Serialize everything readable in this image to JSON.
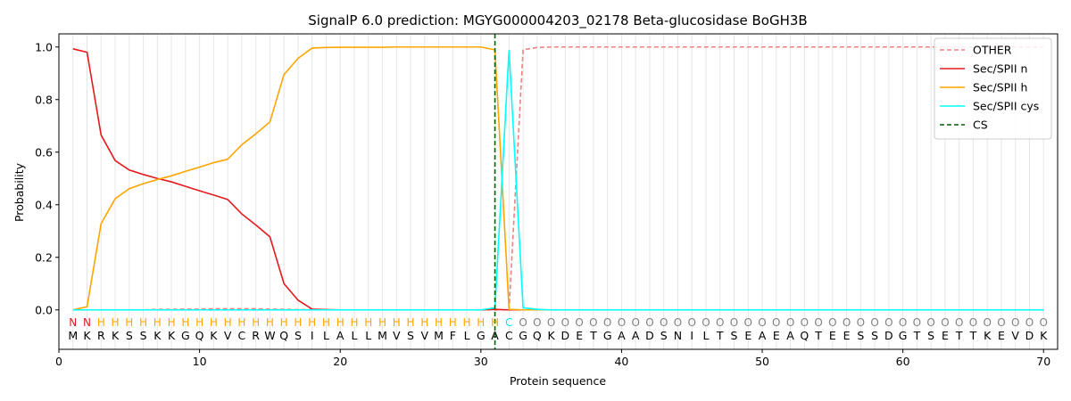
{
  "chart_data": {
    "type": "line",
    "title": "SignalP 6.0 prediction: MGYG000004203_02178 Beta-glucosidase BoGH3B",
    "xlabel": "Protein sequence",
    "ylabel": "Probability",
    "xlim": [
      0,
      71
    ],
    "ylim": [
      -0.15,
      1.05
    ],
    "x_ticks": [
      0,
      10,
      20,
      30,
      40,
      50,
      60,
      70
    ],
    "y_ticks": [
      0.0,
      0.2,
      0.4,
      0.6,
      0.8,
      1.0
    ],
    "x_tick_labels": [
      "0",
      "10",
      "20",
      "30",
      "40",
      "50",
      "60",
      "70"
    ],
    "y_tick_labels": [
      "0.0",
      "0.2",
      "0.4",
      "0.6",
      "0.8",
      "1.0"
    ],
    "grid": "vertical lines at each residue",
    "legend_position": "top-right",
    "sequence": [
      "M",
      "K",
      "R",
      "K",
      "S",
      "S",
      "K",
      "K",
      "G",
      "Q",
      "K",
      "V",
      "C",
      "R",
      "W",
      "Q",
      "S",
      "I",
      "L",
      "A",
      "L",
      "L",
      "M",
      "V",
      "S",
      "V",
      "M",
      "F",
      "L",
      "G",
      "A",
      "C",
      "G",
      "Q",
      "K",
      "D",
      "E",
      "T",
      "G",
      "A",
      "A",
      "D",
      "S",
      "N",
      "I",
      "L",
      "T",
      "S",
      "E",
      "A",
      "E",
      "A",
      "Q",
      "T",
      "E",
      "E",
      "S",
      "S",
      "D",
      "G",
      "T",
      "S",
      "E",
      "T",
      "T",
      "K",
      "E",
      "V",
      "D",
      "K"
    ],
    "prediction": [
      "N",
      "N",
      "H",
      "H",
      "H",
      "H",
      "H",
      "H",
      "H",
      "H",
      "H",
      "H",
      "H",
      "H",
      "H",
      "H",
      "H",
      "H",
      "H",
      "H",
      "H",
      "H",
      "H",
      "H",
      "H",
      "H",
      "H",
      "H",
      "H",
      "H",
      "H",
      "C",
      "O",
      "O",
      "O",
      "O",
      "O",
      "O",
      "O",
      "O",
      "O",
      "O",
      "O",
      "O",
      "O",
      "O",
      "O",
      "O",
      "O",
      "O",
      "O",
      "O",
      "O",
      "O",
      "O",
      "O",
      "O",
      "O",
      "O",
      "O",
      "O",
      "O",
      "O",
      "O",
      "O",
      "O",
      "O",
      "O",
      "O",
      "O"
    ],
    "prediction_colors": {
      "N": "#e41a1c",
      "H": "#ffa500",
      "C": "#00e5ee",
      "O": "#808080"
    },
    "cleavage_site": 31,
    "series": [
      {
        "name": "OTHER",
        "color": "#f08080",
        "style": "dashed",
        "values": [
          0.0,
          0.0,
          0.0,
          0.0,
          0.0,
          0.0,
          0.002,
          0.002,
          0.003,
          0.003,
          0.004,
          0.004,
          0.004,
          0.004,
          0.003,
          0.002,
          0.001,
          0.001,
          0.0,
          0.0,
          0.0,
          0.0,
          0.0,
          0.0,
          0.0,
          0.0,
          0.0,
          0.0,
          0.0,
          0.0,
          0.0,
          0.0,
          0.99,
          0.998,
          1.0,
          1.0,
          1.0,
          1.0,
          1.0,
          1.0,
          1.0,
          1.0,
          1.0,
          1.0,
          1.0,
          1.0,
          1.0,
          1.0,
          1.0,
          1.0,
          1.0,
          1.0,
          1.0,
          1.0,
          1.0,
          1.0,
          1.0,
          1.0,
          1.0,
          1.0,
          1.0,
          1.0,
          1.0,
          1.0,
          1.0,
          1.0,
          1.0,
          1.0,
          1.0,
          1.0
        ]
      },
      {
        "name": "Sec/SPII n",
        "color": "#e41a1c",
        "style": "solid",
        "values": [
          0.993,
          0.98,
          0.665,
          0.568,
          0.532,
          0.515,
          0.5,
          0.487,
          0.47,
          0.453,
          0.437,
          0.42,
          0.365,
          0.323,
          0.278,
          0.1,
          0.037,
          0.003,
          0.001,
          0.0,
          0.0,
          0.0,
          0.0,
          0.0,
          0.0,
          0.0,
          0.0,
          0.0,
          0.0,
          0.0,
          0.002,
          0.0,
          0.0,
          0.0,
          0.0,
          0.0,
          0.0,
          0.0,
          0.0,
          0.0,
          0.0,
          0.0,
          0.0,
          0.0,
          0.0,
          0.0,
          0.0,
          0.0,
          0.0,
          0.0,
          0.0,
          0.0,
          0.0,
          0.0,
          0.0,
          0.0,
          0.0,
          0.0,
          0.0,
          0.0,
          0.0,
          0.0,
          0.0,
          0.0,
          0.0,
          0.0,
          0.0,
          0.0,
          0.0,
          0.0
        ]
      },
      {
        "name": "Sec/SPII h",
        "color": "#ffa500",
        "style": "solid",
        "values": [
          0.0,
          0.012,
          0.328,
          0.423,
          0.461,
          0.48,
          0.496,
          0.51,
          0.527,
          0.543,
          0.56,
          0.573,
          0.628,
          0.67,
          0.715,
          0.895,
          0.957,
          0.996,
          0.998,
          0.999,
          0.999,
          0.999,
          0.999,
          1.0,
          1.0,
          1.0,
          1.0,
          1.0,
          1.0,
          1.0,
          0.989,
          0.002,
          0.0,
          0.0,
          0.0,
          0.0,
          0.0,
          0.0,
          0.0,
          0.0,
          0.0,
          0.0,
          0.0,
          0.0,
          0.0,
          0.0,
          0.0,
          0.0,
          0.0,
          0.0,
          0.0,
          0.0,
          0.0,
          0.0,
          0.0,
          0.0,
          0.0,
          0.0,
          0.0,
          0.0,
          0.0,
          0.0,
          0.0,
          0.0,
          0.0,
          0.0,
          0.0,
          0.0,
          0.0,
          0.0
        ]
      },
      {
        "name": "Sec/SPII cys",
        "color": "#00ffff",
        "style": "solid",
        "values": [
          0.0,
          0.0,
          0.0,
          0.0,
          0.0,
          0.0,
          0.0,
          0.0,
          0.0,
          0.0,
          0.0,
          0.0,
          0.0,
          0.0,
          0.0,
          0.0,
          0.0,
          0.0,
          0.0,
          0.0,
          0.0,
          0.0,
          0.0,
          0.0,
          0.0,
          0.0,
          0.0,
          0.0,
          0.0,
          0.0,
          0.008,
          0.988,
          0.008,
          0.002,
          0.0,
          0.0,
          0.0,
          0.0,
          0.0,
          0.0,
          0.0,
          0.0,
          0.0,
          0.0,
          0.0,
          0.0,
          0.0,
          0.0,
          0.0,
          0.0,
          0.0,
          0.0,
          0.0,
          0.0,
          0.0,
          0.0,
          0.0,
          0.0,
          0.0,
          0.0,
          0.0,
          0.0,
          0.0,
          0.0,
          0.0,
          0.0,
          0.0,
          0.0,
          0.0,
          0.0
        ]
      }
    ],
    "legend": [
      {
        "label": "OTHER",
        "color": "#f08080",
        "style": "dashed"
      },
      {
        "label": "Sec/SPII n",
        "color": "#e41a1c",
        "style": "solid"
      },
      {
        "label": "Sec/SPII h",
        "color": "#ffa500",
        "style": "solid"
      },
      {
        "label": "Sec/SPII cys",
        "color": "#00ffff",
        "style": "solid"
      },
      {
        "label": "CS",
        "color": "#006400",
        "style": "dashed"
      }
    ]
  }
}
